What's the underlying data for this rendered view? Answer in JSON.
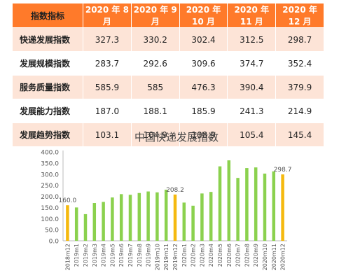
{
  "table": {
    "headers": [
      "指数指标",
      "2020 年 8 月",
      "2020 年 9 月",
      "2020 年 10 月",
      "2020 年 11 月",
      "2020 年 12 月"
    ],
    "rows": [
      {
        "name": "快递发展指数",
        "values": [
          "327.3",
          "330.2",
          "302.4",
          "312.5",
          "298.7"
        ]
      },
      {
        "name": "发展规模指数",
        "values": [
          "283.7",
          "292.6",
          "309.6",
          "374.7",
          "352.4"
        ]
      },
      {
        "name": "服务质量指数",
        "values": [
          "585.9",
          "585",
          "476.3",
          "390.4",
          "379.9"
        ]
      },
      {
        "name": "发展能力指数",
        "values": [
          "187.0",
          "188.1",
          "185.9",
          "241.3",
          "214.9"
        ]
      },
      {
        "name": "发展趋势指数",
        "values": [
          "103.1",
          "104.9",
          "108.9",
          "105.4",
          "145.4"
        ]
      }
    ]
  },
  "chart_data": {
    "type": "bar",
    "title": "中国快递发展指数",
    "categories": [
      "2018m12",
      "2019m1",
      "2019m2",
      "2019m3",
      "2019m4",
      "2019m5",
      "2019m6",
      "2019m7",
      "2019m8",
      "2019m9",
      "2019m10",
      "2019m11",
      "2019m12",
      "2020m1",
      "2020m2",
      "2020m3",
      "2020m4",
      "2020m5",
      "2020m6",
      "2020m7",
      "2020m8",
      "2020m9",
      "2020m10",
      "2020m11",
      "2020m12"
    ],
    "values": [
      160.0,
      150,
      120,
      170,
      175,
      195,
      210,
      207,
      215,
      222,
      218,
      230,
      208.2,
      172,
      158,
      213,
      220,
      335,
      362,
      283,
      327.3,
      330.2,
      302.4,
      312.5,
      298.7
    ],
    "highlight_indices": [
      0,
      12,
      24
    ],
    "data_labels": {
      "0": "160.0",
      "12": "208.2",
      "24": "298.7"
    },
    "ylim": [
      0,
      400
    ],
    "yticks": [
      "0.0",
      "50.0",
      "100.0",
      "150.0",
      "200.0",
      "250.0",
      "300.0",
      "350.0",
      "400.0"
    ],
    "xlabel": "",
    "ylabel": "",
    "grid": false,
    "colors": {
      "normal": "#8bd14e",
      "highlight": "#f5b90f",
      "axis": "#bbbbbb",
      "text": "#555555"
    }
  }
}
